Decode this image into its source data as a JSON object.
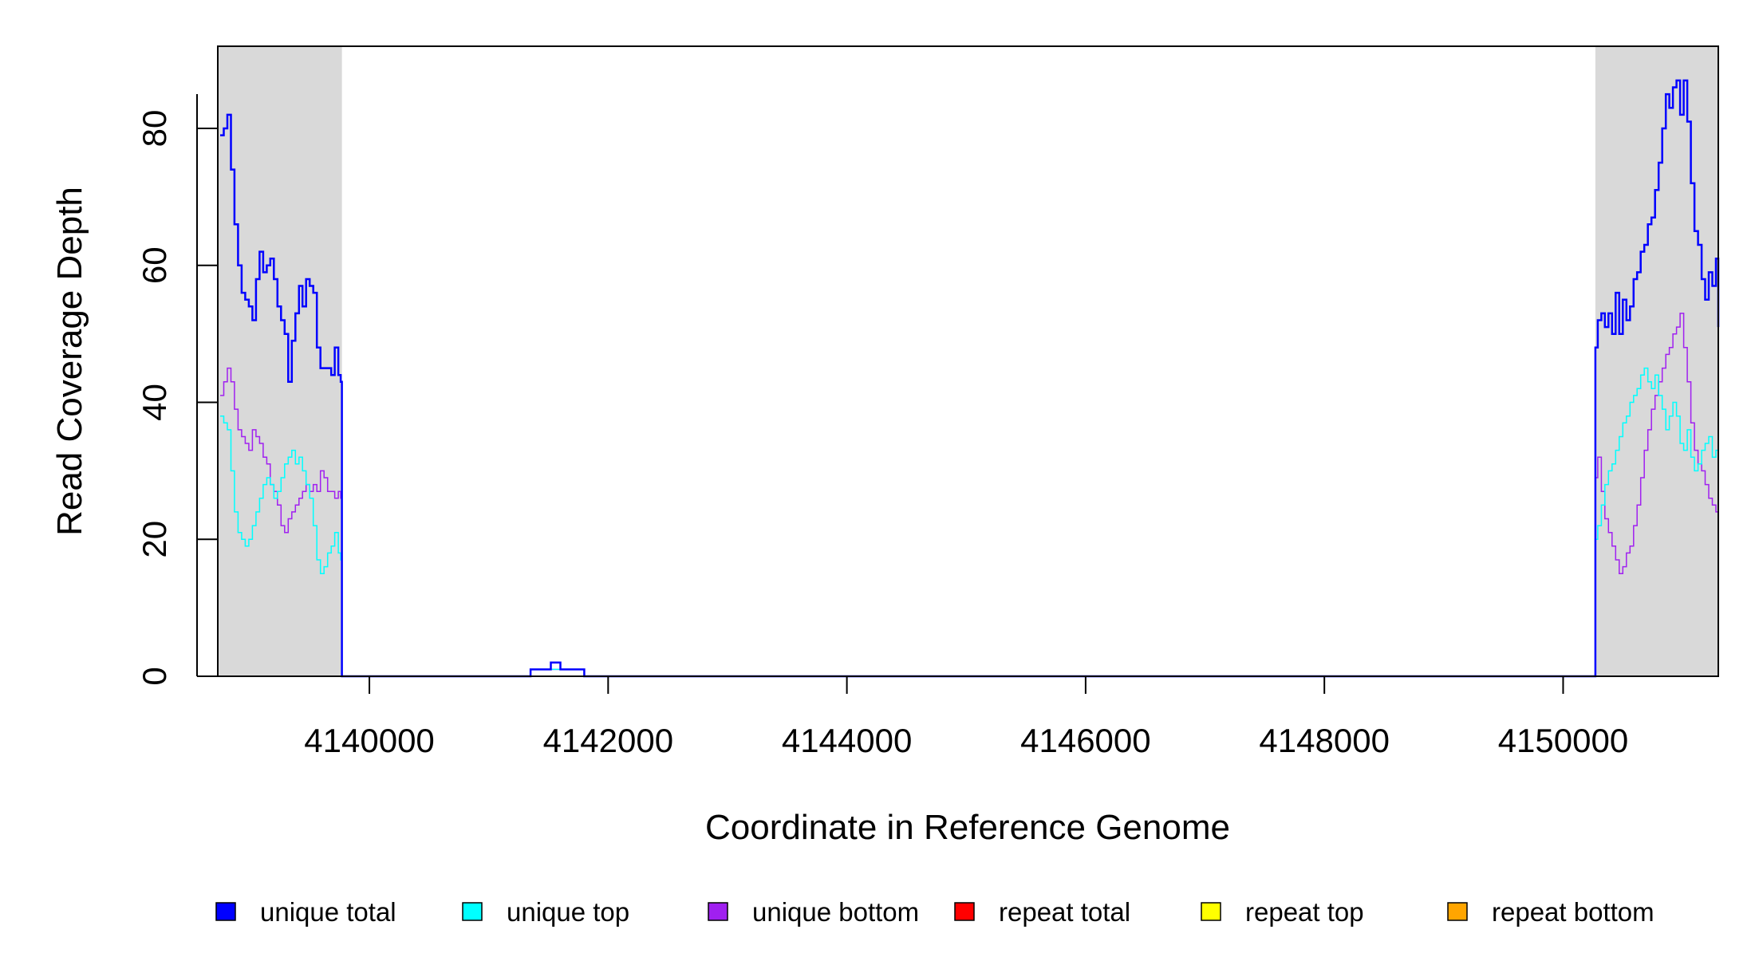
{
  "chart_data": {
    "type": "line",
    "xlabel": "Coordinate in Reference Genome",
    "ylabel": "Read Coverage Depth",
    "xlim": [
      4138730,
      4151300
    ],
    "ylim": [
      0,
      92
    ],
    "x_ticks": [
      4140000,
      4142000,
      4144000,
      4146000,
      4148000,
      4150000
    ],
    "x_tick_labels": [
      "4140000",
      "4142000",
      "4144000",
      "4146000",
      "4148000",
      "4150000"
    ],
    "y_ticks": [
      0,
      20,
      40,
      60,
      80
    ],
    "y_tick_labels": [
      "0",
      "20",
      "40",
      "60",
      "80"
    ],
    "shaded_regions": [
      {
        "x_start": 4138730,
        "x_end": 4139770,
        "color": "#d9d9d9"
      },
      {
        "x_start": 4150270,
        "x_end": 4151300,
        "color": "#d9d9d9"
      }
    ],
    "grid": false,
    "legend_position": "bottom",
    "series": [
      {
        "name": "unique total",
        "color": "#0000ff",
        "width": 2.5,
        "step": true,
        "x": [
          4138750,
          4138780,
          4138810,
          4138840,
          4138870,
          4138900,
          4138930,
          4138960,
          4138990,
          4139020,
          4139050,
          4139080,
          4139110,
          4139140,
          4139170,
          4139200,
          4139230,
          4139260,
          4139290,
          4139320,
          4139350,
          4139380,
          4139410,
          4139440,
          4139470,
          4139500,
          4139530,
          4139560,
          4139590,
          4139620,
          4139650,
          4139680,
          4139710,
          4139740,
          4139760,
          4139770,
          4141350,
          4141520,
          4141600,
          4141800,
          4150270,
          4150290,
          4150320,
          4150350,
          4150380,
          4150410,
          4150440,
          4150470,
          4150500,
          4150530,
          4150560,
          4150590,
          4150620,
          4150650,
          4150680,
          4150710,
          4150740,
          4150770,
          4150800,
          4150830,
          4150860,
          4150890,
          4150920,
          4150950,
          4150980,
          4151010,
          4151040,
          4151070,
          4151100,
          4151130,
          4151160,
          4151190,
          4151220,
          4151250,
          4151280,
          4151300
        ],
        "y": [
          79,
          80,
          82,
          74,
          66,
          60,
          56,
          55,
          54,
          52,
          58,
          62,
          59,
          60,
          61,
          58,
          54,
          52,
          50,
          43,
          49,
          53,
          57,
          54,
          58,
          57,
          56,
          48,
          45,
          45,
          45,
          44,
          48,
          44,
          43,
          0,
          1,
          2,
          1,
          0,
          48,
          52,
          53,
          51,
          53,
          50,
          56,
          50,
          55,
          52,
          54,
          58,
          59,
          62,
          63,
          66,
          67,
          71,
          75,
          80,
          85,
          83,
          86,
          87,
          82,
          87,
          81,
          72,
          65,
          63,
          58,
          55,
          59,
          57,
          61,
          51
        ]
      },
      {
        "name": "unique top",
        "color": "#00ffff",
        "width": 1.5,
        "step": true,
        "x": [
          4138750,
          4138780,
          4138810,
          4138840,
          4138870,
          4138900,
          4138930,
          4138960,
          4138990,
          4139020,
          4139050,
          4139080,
          4139110,
          4139140,
          4139170,
          4139200,
          4139230,
          4139260,
          4139290,
          4139320,
          4139350,
          4139380,
          4139410,
          4139440,
          4139470,
          4139500,
          4139530,
          4139560,
          4139590,
          4139620,
          4139650,
          4139680,
          4139710,
          4139740,
          4139760,
          4139770,
          4141350,
          4141600,
          4141800,
          4150270,
          4150290,
          4150320,
          4150350,
          4150380,
          4150410,
          4150440,
          4150470,
          4150500,
          4150530,
          4150560,
          4150590,
          4150620,
          4150650,
          4150680,
          4150710,
          4150740,
          4150770,
          4150800,
          4150830,
          4150860,
          4150890,
          4150920,
          4150950,
          4150980,
          4151010,
          4151040,
          4151070,
          4151100,
          4151130,
          4151160,
          4151190,
          4151220,
          4151250,
          4151280,
          4151300
        ],
        "y": [
          38,
          37,
          36,
          30,
          24,
          21,
          20,
          19,
          20,
          22,
          24,
          26,
          28,
          29,
          28,
          26,
          27,
          29,
          31,
          32,
          33,
          31,
          32,
          30,
          28,
          26,
          22,
          17,
          15,
          16,
          18,
          19,
          21,
          18,
          17,
          0,
          1,
          1,
          0,
          20,
          22,
          25,
          28,
          30,
          31,
          33,
          35,
          37,
          38,
          40,
          41,
          42,
          44,
          45,
          43,
          42,
          44,
          41,
          39,
          36,
          38,
          40,
          38,
          34,
          33,
          36,
          32,
          30,
          31,
          33,
          34,
          35,
          32,
          33,
          35
        ]
      },
      {
        "name": "unique bottom",
        "color": "#a020f0",
        "width": 1.5,
        "step": true,
        "x": [
          4138750,
          4138780,
          4138810,
          4138840,
          4138870,
          4138900,
          4138930,
          4138960,
          4138990,
          4139020,
          4139050,
          4139080,
          4139110,
          4139140,
          4139170,
          4139200,
          4139230,
          4139260,
          4139290,
          4139320,
          4139350,
          4139380,
          4139410,
          4139440,
          4139470,
          4139500,
          4139530,
          4139560,
          4139590,
          4139620,
          4139650,
          4139680,
          4139710,
          4139740,
          4139760,
          4139770,
          4141350,
          4141600,
          4141800,
          4150270,
          4150290,
          4150320,
          4150350,
          4150380,
          4150410,
          4150440,
          4150470,
          4150500,
          4150530,
          4150560,
          4150590,
          4150620,
          4150650,
          4150680,
          4150710,
          4150740,
          4150770,
          4150800,
          4150830,
          4150860,
          4150890,
          4150920,
          4150950,
          4150980,
          4151010,
          4151040,
          4151070,
          4151100,
          4151130,
          4151160,
          4151190,
          4151220,
          4151250,
          4151280,
          4151300
        ],
        "y": [
          41,
          43,
          45,
          43,
          39,
          36,
          35,
          34,
          33,
          36,
          35,
          34,
          32,
          31,
          28,
          27,
          25,
          22,
          21,
          23,
          24,
          25,
          26,
          27,
          28,
          27,
          28,
          27,
          30,
          29,
          27,
          27,
          26,
          27,
          26,
          0,
          1,
          1,
          0,
          29,
          32,
          27,
          23,
          21,
          19,
          17,
          15,
          16,
          18,
          19,
          22,
          25,
          29,
          33,
          36,
          39,
          41,
          43,
          45,
          47,
          48,
          50,
          51,
          53,
          48,
          43,
          37,
          33,
          31,
          30,
          28,
          26,
          25,
          24,
          18
        ]
      },
      {
        "name": "repeat total",
        "color": "#ff0000",
        "width": 1.5,
        "step": true,
        "x": [
          4138730,
          4151300
        ],
        "y": [
          0,
          0
        ]
      },
      {
        "name": "repeat top",
        "color": "#ffff00",
        "width": 1.5,
        "step": true,
        "x": [
          4138730,
          4151300
        ],
        "y": [
          0,
          0
        ]
      },
      {
        "name": "repeat bottom",
        "color": "#ffa500",
        "width": 2,
        "step": true,
        "x": [
          4138730,
          4151300
        ],
        "y": [
          0,
          0
        ]
      }
    ]
  },
  "legend": {
    "items": [
      {
        "label": "unique total",
        "color": "#0000ff"
      },
      {
        "label": "unique top",
        "color": "#00ffff"
      },
      {
        "label": "unique bottom",
        "color": "#a020f0"
      },
      {
        "label": "repeat total",
        "color": "#ff0000"
      },
      {
        "label": "repeat top",
        "color": "#ffff00"
      },
      {
        "label": "repeat bottom",
        "color": "#ffa500"
      }
    ]
  }
}
